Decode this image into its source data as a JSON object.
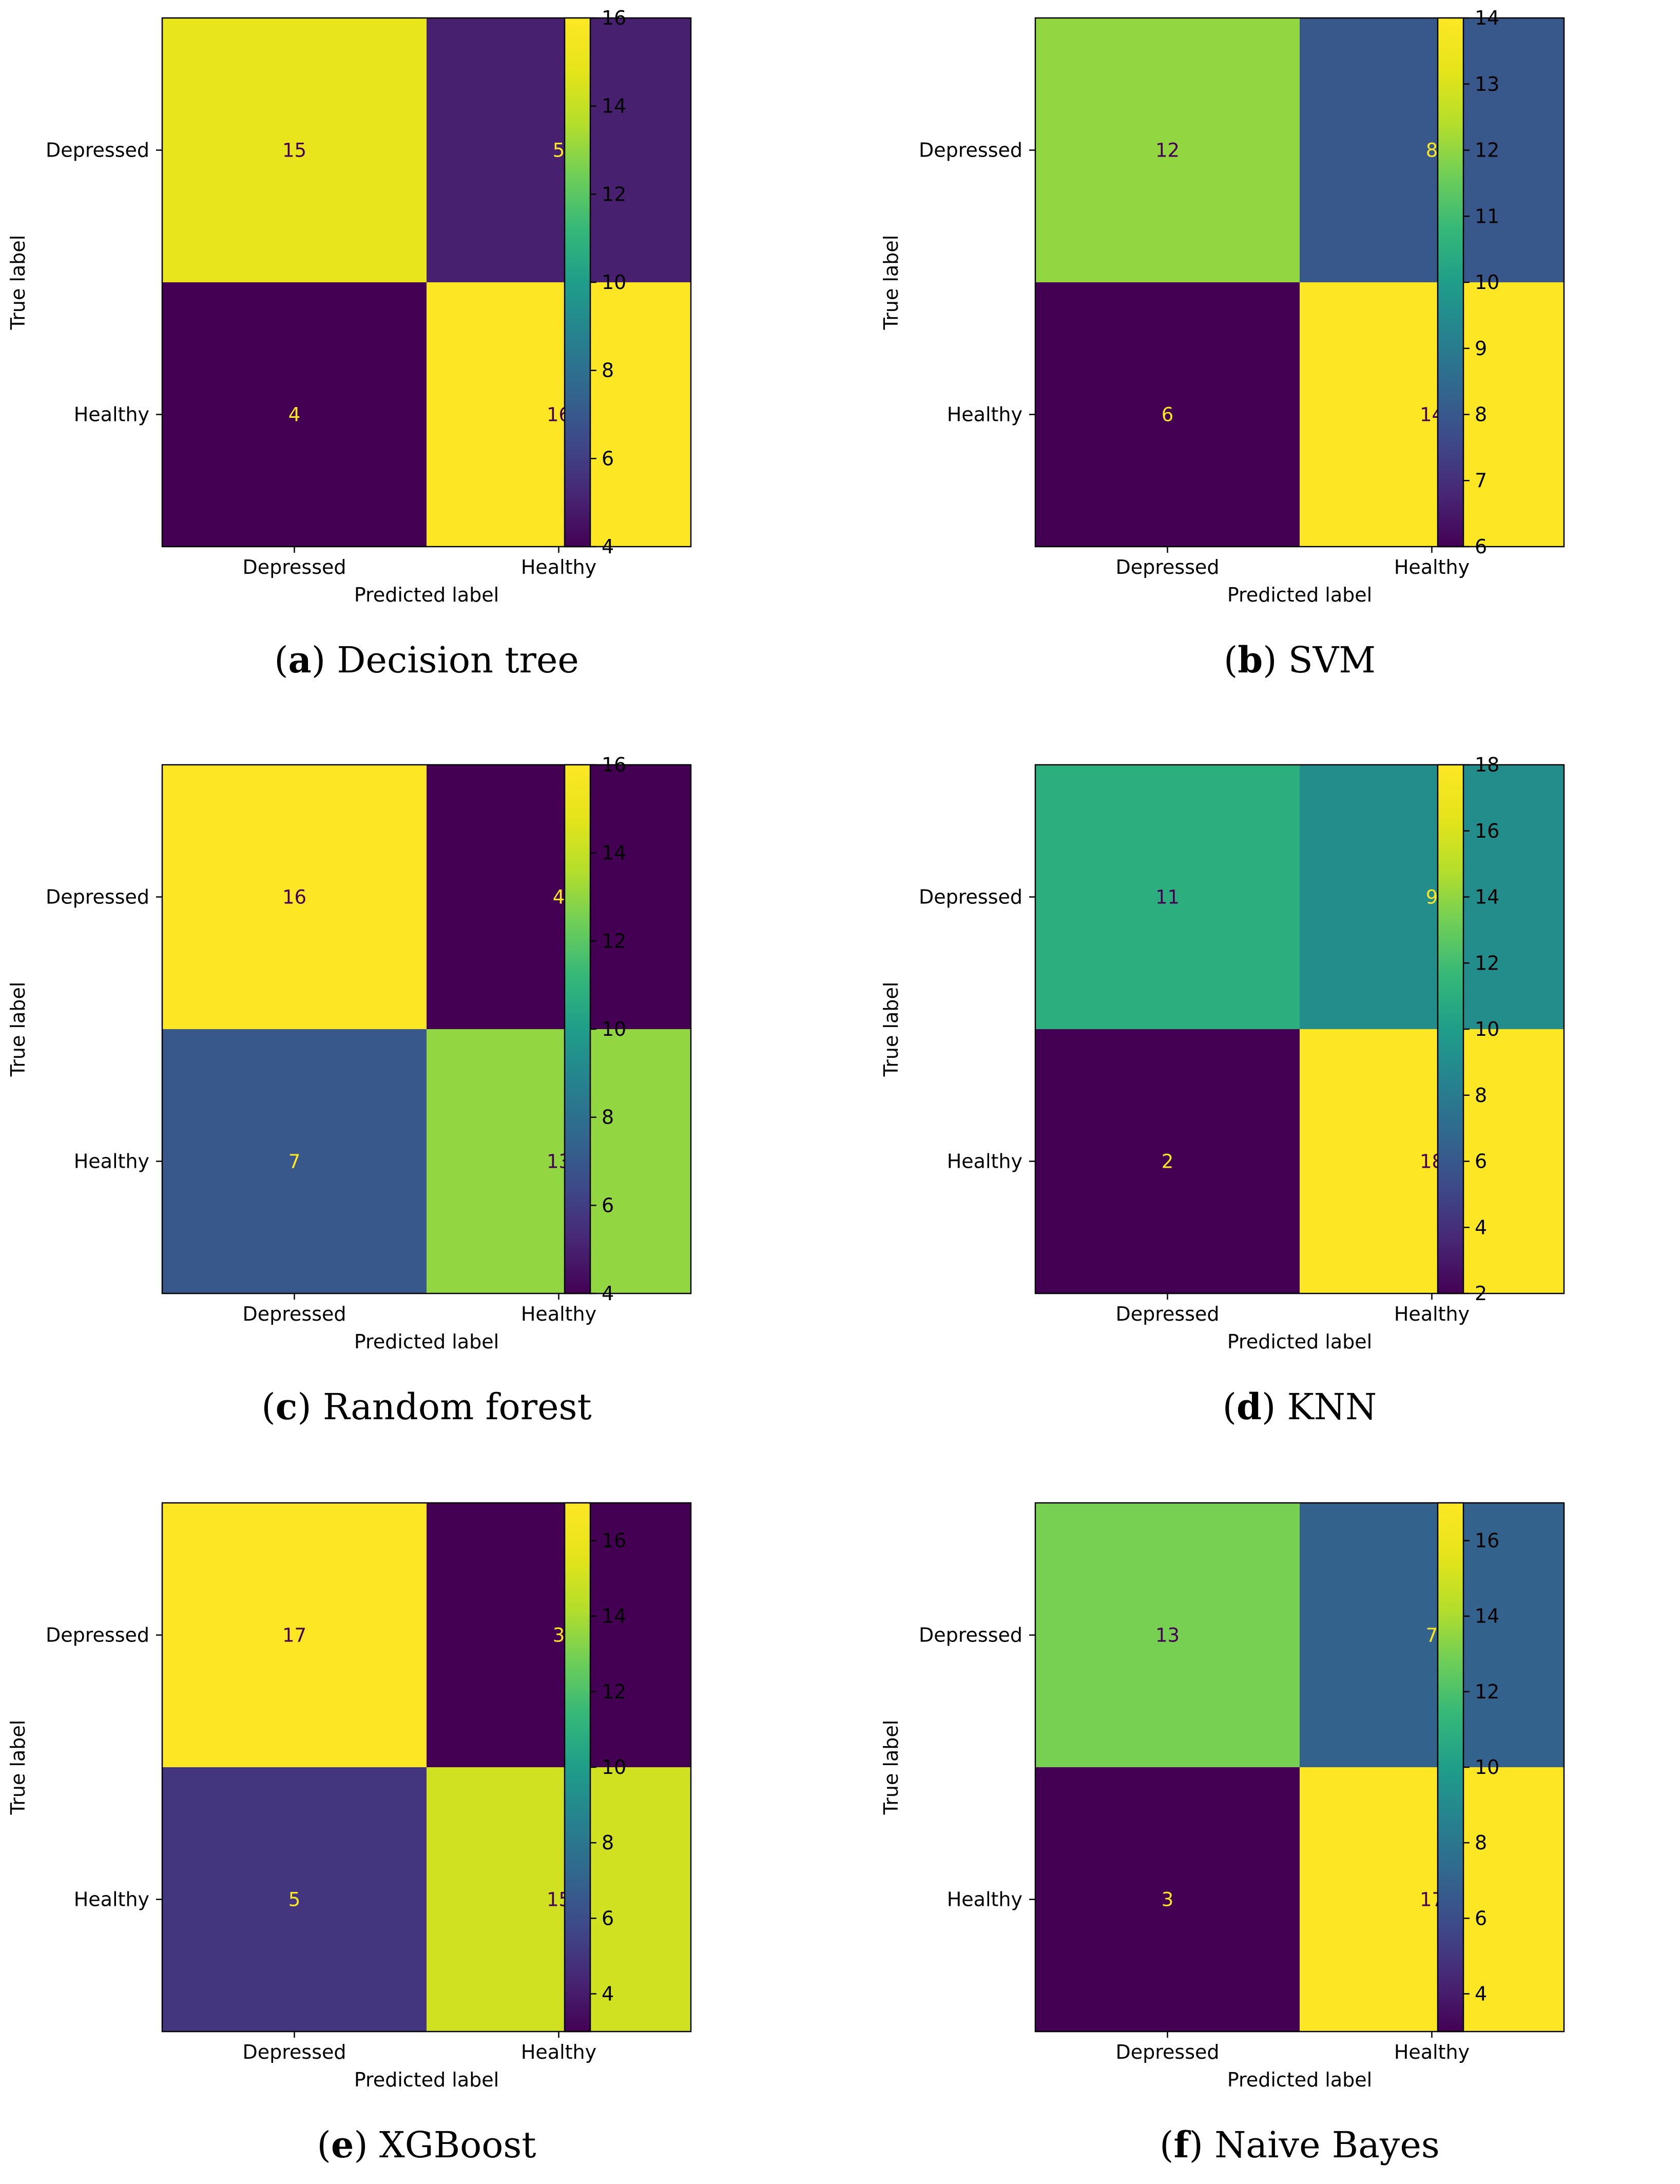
{
  "chart_data": [
    {
      "type": "heatmap",
      "caption_letter": "a",
      "caption_text": ") Decision tree",
      "caption_open": "(",
      "xlabel": "Predicted label",
      "ylabel": "True label",
      "x_categories": [
        "Depressed",
        "Healthy"
      ],
      "y_categories": [
        "Depressed",
        "Healthy"
      ],
      "matrix": [
        [
          15,
          5
        ],
        [
          4,
          16
        ]
      ],
      "vmin": 4,
      "vmax": 16,
      "colorbar_ticks": [
        4,
        6,
        8,
        10,
        12,
        14,
        16
      ]
    },
    {
      "type": "heatmap",
      "caption_letter": "b",
      "caption_text": ") SVM",
      "caption_open": "(",
      "xlabel": "Predicted label",
      "ylabel": "True label",
      "x_categories": [
        "Depressed",
        "Healthy"
      ],
      "y_categories": [
        "Depressed",
        "Healthy"
      ],
      "matrix": [
        [
          12,
          8
        ],
        [
          6,
          14
        ]
      ],
      "vmin": 6,
      "vmax": 14,
      "colorbar_ticks": [
        6,
        7,
        8,
        9,
        10,
        11,
        12,
        13,
        14
      ]
    },
    {
      "type": "heatmap",
      "caption_letter": "c",
      "caption_text": ") Random forest",
      "caption_open": "(",
      "xlabel": "Predicted label",
      "ylabel": "True label",
      "x_categories": [
        "Depressed",
        "Healthy"
      ],
      "y_categories": [
        "Depressed",
        "Healthy"
      ],
      "matrix": [
        [
          16,
          4
        ],
        [
          7,
          13
        ]
      ],
      "vmin": 4,
      "vmax": 16,
      "colorbar_ticks": [
        4,
        6,
        8,
        10,
        12,
        14,
        16
      ]
    },
    {
      "type": "heatmap",
      "caption_letter": "d",
      "caption_text": ") KNN",
      "caption_open": "(",
      "xlabel": "Predicted label",
      "ylabel": "True label",
      "x_categories": [
        "Depressed",
        "Healthy"
      ],
      "y_categories": [
        "Depressed",
        "Healthy"
      ],
      "matrix": [
        [
          11,
          9
        ],
        [
          2,
          18
        ]
      ],
      "vmin": 2,
      "vmax": 18,
      "colorbar_ticks": [
        2,
        4,
        6,
        8,
        10,
        12,
        14,
        16,
        18
      ]
    },
    {
      "type": "heatmap",
      "caption_letter": "e",
      "caption_text": ") XGBoost",
      "caption_open": "(",
      "xlabel": "Predicted label",
      "ylabel": "True label",
      "x_categories": [
        "Depressed",
        "Healthy"
      ],
      "y_categories": [
        "Depressed",
        "Healthy"
      ],
      "matrix": [
        [
          17,
          3
        ],
        [
          5,
          15
        ]
      ],
      "vmin": 3,
      "vmax": 17,
      "colorbar_ticks": [
        4,
        6,
        8,
        10,
        12,
        14,
        16
      ]
    },
    {
      "type": "heatmap",
      "caption_letter": "f",
      "caption_text": ") Naive Bayes",
      "caption_open": "(",
      "xlabel": "Predicted label",
      "ylabel": "True label",
      "x_categories": [
        "Depressed",
        "Healthy"
      ],
      "y_categories": [
        "Depressed",
        "Healthy"
      ],
      "matrix": [
        [
          13,
          7
        ],
        [
          3,
          17
        ]
      ],
      "vmin": 3,
      "vmax": 17,
      "colorbar_ticks": [
        4,
        6,
        8,
        10,
        12,
        14,
        16
      ]
    }
  ]
}
